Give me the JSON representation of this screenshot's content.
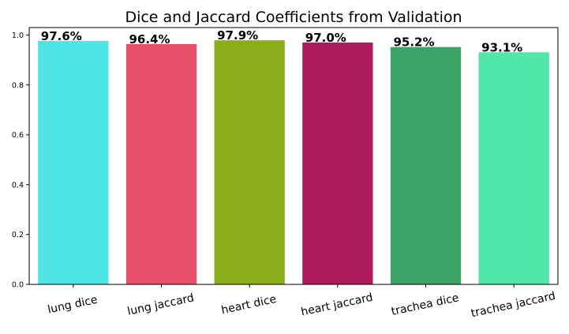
{
  "chart_data": {
    "type": "bar",
    "title": "Dice and Jaccard Coefficients from Validation",
    "xlabel": "",
    "ylabel": "",
    "categories": [
      "lung dice",
      "lung jaccard",
      "heart dice",
      "heart jaccard",
      "trachea dice",
      "trachea jaccard"
    ],
    "values": [
      0.976,
      0.964,
      0.979,
      0.97,
      0.952,
      0.931
    ],
    "data_labels": [
      "97.6%",
      "96.4%",
      "97.9%",
      "97.0%",
      "95.2%",
      "93.1%"
    ],
    "colors": [
      "#4ee4e4",
      "#e8516b",
      "#8aad1a",
      "#ae1a5b",
      "#3ba466",
      "#50e6a8"
    ],
    "ylim": [
      0,
      1.03
    ],
    "yticks": [
      0.0,
      0.2,
      0.4,
      0.6,
      0.8,
      1.0
    ],
    "ytick_labels": [
      "0.0",
      "0.2",
      "0.4",
      "0.6",
      "0.8",
      "1.0"
    ],
    "grid": false,
    "legend": "none"
  }
}
